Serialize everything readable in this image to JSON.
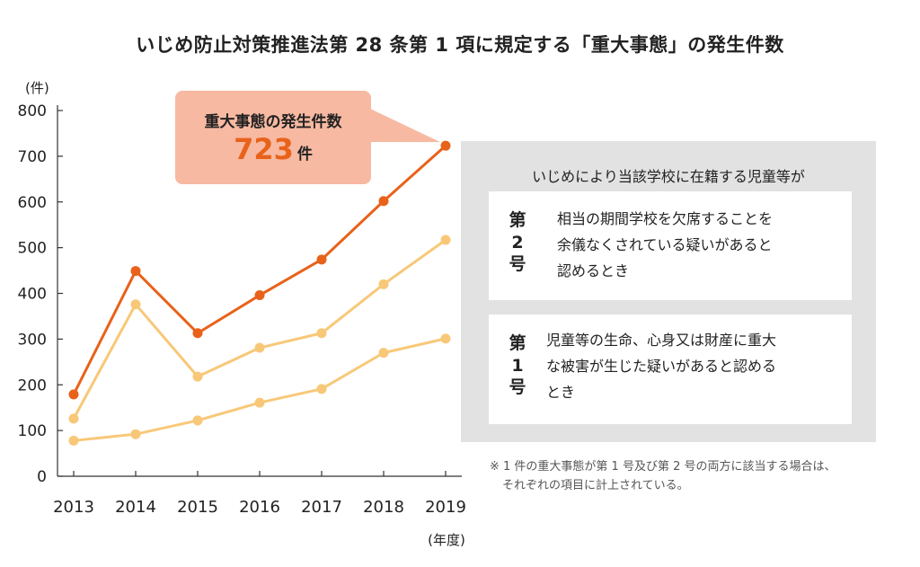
{
  "title": "いじめ防止対策推進法第 28 条第 1 項に規定する「重大事態」の発生件数",
  "callout": {
    "label": "重大事態の発生件数",
    "value": "723",
    "unit": "件"
  },
  "panel": {
    "header": "いじめにより当該学校に在籍する児童等が",
    "items": [
      {
        "badge_top": "第",
        "badge_num": "2",
        "badge_bottom": "号",
        "lines": [
          "相当の期間学校を欠席することを",
          "余儀なくされている疑いがあると",
          "認めるとき"
        ]
      },
      {
        "badge_top": "第",
        "badge_num": "1",
        "badge_bottom": "号",
        "lines": [
          "児童等の生命、心身又は財産に重大",
          "な被害が生じた疑いがあると認める",
          "とき"
        ]
      }
    ]
  },
  "footnote": [
    "※ 1 件の重大事態が第 1 号及び第 2 号の両方に該当する場合は、",
    "それぞれの項目に計上されている。"
  ],
  "chart_data": {
    "type": "line",
    "title": "いじめ防止対策推進法第 28 条第 1 項に規定する「重大事態」の発生件数",
    "ylabel": "(件)",
    "xlabel": "(年度)",
    "categories": [
      "2013",
      "2014",
      "2015",
      "2016",
      "2017",
      "2018",
      "2019"
    ],
    "ylim": [
      0,
      800
    ],
    "yticks": [
      0,
      100,
      200,
      300,
      400,
      500,
      600,
      700,
      800
    ],
    "grid": false,
    "series": [
      {
        "name": "重大事態の発生件数",
        "values": [
          179,
          449,
          313,
          396,
          474,
          602,
          723
        ],
        "color": "#e8621a"
      },
      {
        "name": "第2号",
        "values": [
          126,
          376,
          218,
          281,
          313,
          420,
          517
        ],
        "color": "#f8c878"
      },
      {
        "name": "第1号",
        "values": [
          78,
          92,
          122,
          161,
          191,
          270,
          301
        ],
        "color": "#f8c878"
      }
    ]
  }
}
